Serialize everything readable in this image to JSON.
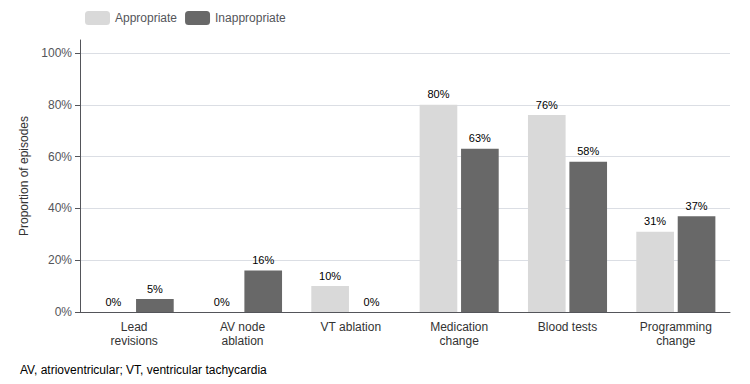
{
  "chart_data": {
    "type": "bar",
    "categories": [
      "Lead\nrevisions",
      "AV node\nablation",
      "VT ablation",
      "Medication\nchange",
      "Blood tests",
      "Programming\nchange"
    ],
    "series": [
      {
        "name": "Appropriate",
        "color": "#d9d9d9",
        "values": [
          0,
          0,
          10,
          80,
          76,
          31
        ],
        "value_labels": [
          "0%",
          "0%",
          "10%",
          "80%",
          "76%",
          "31%"
        ]
      },
      {
        "name": "Inappropriate",
        "color": "#686868",
        "values": [
          5,
          16,
          0,
          63,
          58,
          37
        ],
        "value_labels": [
          "5%",
          "16%",
          "0%",
          "63%",
          "58%",
          "37%"
        ]
      }
    ],
    "ylabel": "Proportion of episodes",
    "ylim": [
      0,
      105
    ],
    "yticks": [
      {
        "value": 0,
        "label": "0%"
      },
      {
        "value": 20,
        "label": "20%"
      },
      {
        "value": 40,
        "label": "40%"
      },
      {
        "value": 60,
        "label": "60%"
      },
      {
        "value": 80,
        "label": "80%"
      },
      {
        "value": 100,
        "label": "100%"
      }
    ],
    "grid": true,
    "legend": "upper left",
    "data_labels": true,
    "footnote": "AV, atrioventricular; VT, ventricular tachycardia"
  }
}
